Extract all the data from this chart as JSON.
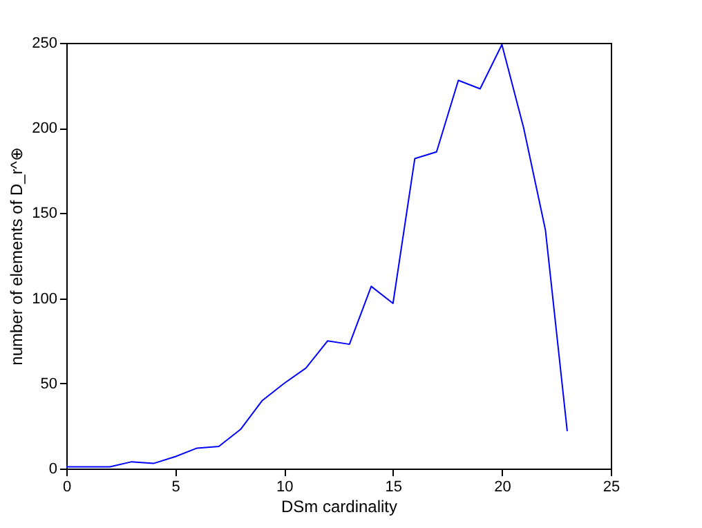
{
  "chart_data": {
    "type": "line",
    "xlabel": "DSm cardinality",
    "ylabel": "number of elements of D_r^⊕",
    "x": [
      0,
      1,
      2,
      3,
      4,
      5,
      6,
      7,
      8,
      9,
      10,
      11,
      12,
      13,
      14,
      15,
      16,
      17,
      18,
      19,
      20,
      21,
      22,
      23
    ],
    "series": [
      {
        "color": "#0000ff",
        "values": [
          1,
          1,
          1,
          4,
          3,
          7,
          12,
          13,
          23,
          40,
          50,
          59,
          75,
          73,
          107,
          97,
          182,
          186,
          228,
          223,
          249,
          200,
          140,
          22
        ]
      }
    ],
    "xlim": [
      0,
      25
    ],
    "xticks": [
      0,
      5,
      10,
      15,
      20,
      25
    ],
    "ylim": [
      0,
      250
    ],
    "yticks": [
      0,
      50,
      100,
      150,
      200,
      250
    ],
    "grid": false,
    "marker": "none",
    "line_style": "solid"
  }
}
